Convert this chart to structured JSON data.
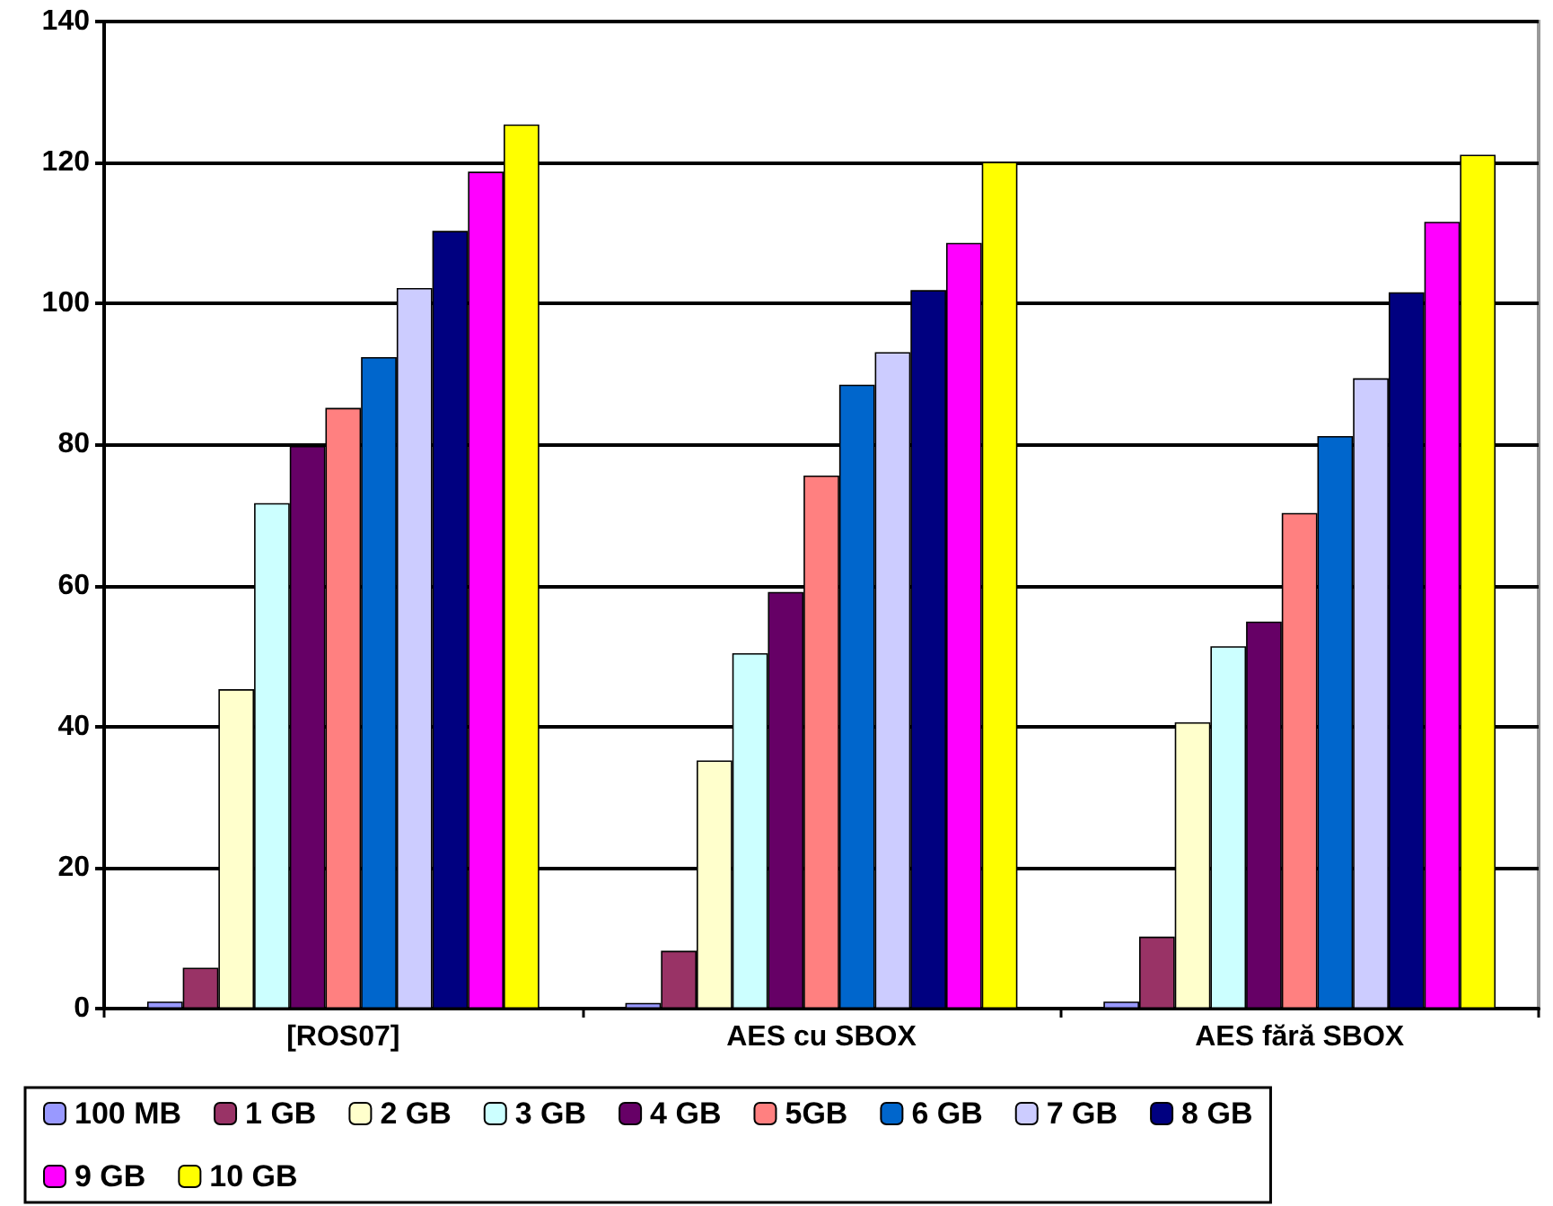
{
  "chart_data": {
    "type": "bar",
    "categories": [
      "[ROS07]",
      "AES cu SBOX",
      "AES fără SBOX"
    ],
    "series": [
      {
        "name": "100 MB",
        "color": "#9999ff",
        "values": [
          1,
          0.8,
          1
        ]
      },
      {
        "name": "1 GB",
        "color": "#993366",
        "values": [
          5.8,
          8.2,
          10.2
        ]
      },
      {
        "name": "2 GB",
        "color": "#ffffcc",
        "values": [
          45.3,
          35.2,
          40.6
        ]
      },
      {
        "name": "3 GB",
        "color": "#ccffff",
        "values": [
          71.7,
          50.4,
          51.4
        ]
      },
      {
        "name": "4 GB",
        "color": "#660066",
        "values": [
          79.8,
          59.1,
          54.9
        ]
      },
      {
        "name": "5GB",
        "color": "#ff8080",
        "values": [
          85.2,
          75.6,
          70.3
        ]
      },
      {
        "name": "6 GB",
        "color": "#0066cc",
        "values": [
          92.4,
          88.5,
          81.2
        ]
      },
      {
        "name": "7 GB",
        "color": "#ccccff",
        "values": [
          102.2,
          93.1,
          89.4
        ]
      },
      {
        "name": "8 GB",
        "color": "#000080",
        "values": [
          110.3,
          101.9,
          101.6
        ]
      },
      {
        "name": "9 GB",
        "color": "#ff00ff",
        "values": [
          118.7,
          108.6,
          111.6
        ]
      },
      {
        "name": "10 GB",
        "color": "#ffff00",
        "values": [
          125.4,
          120.1,
          121.1
        ]
      }
    ],
    "ylim": [
      0,
      140
    ],
    "yticks": [
      0,
      20,
      40,
      60,
      80,
      100,
      120,
      140
    ],
    "grid": "y",
    "legend": "bottom"
  }
}
